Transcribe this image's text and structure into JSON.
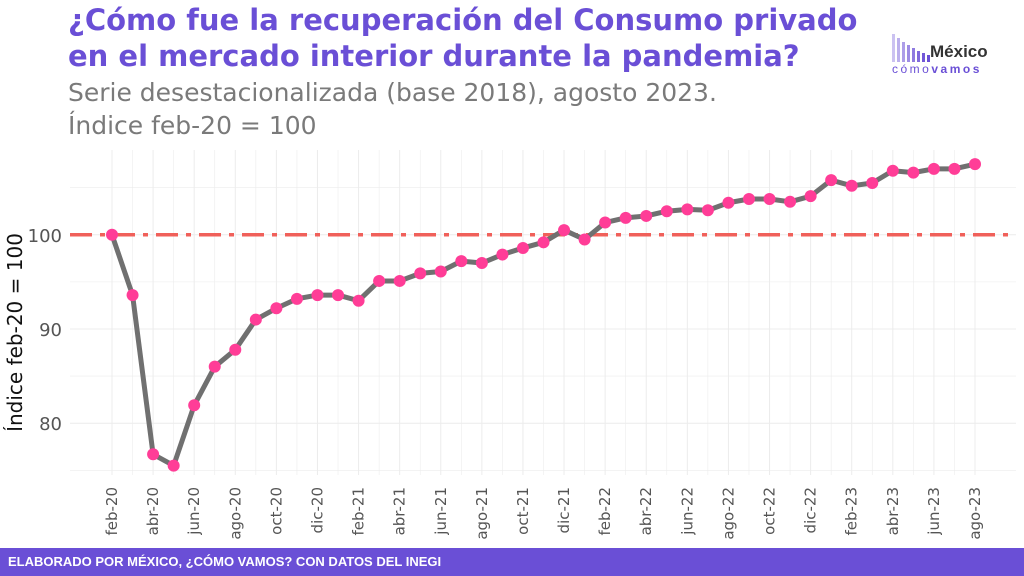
{
  "header": {
    "title": "¿Cómo fue la recuperación del Consumo privado en el mercado interior durante la pandemia?",
    "subtitle_line1": "Serie desestacionalizada (base 2018), agosto 2023.",
    "subtitle_line2": "Índice feb-20 = 100"
  },
  "logo": {
    "top": "México",
    "sub_light": "cómo",
    "sub_bold": "vamos"
  },
  "footer": {
    "text": "ELABORADO POR MÉXICO, ¿CÓMO VAMOS? CON DATOS DEL INEGI"
  },
  "colors": {
    "title": "#6a4fd6",
    "line": "#707070",
    "points": "#ff3d97",
    "reference": "#f0605a",
    "footer_bg": "#6a4fd6",
    "grid": "#ececec"
  },
  "chart_data": {
    "type": "line",
    "ylabel": "Índice feb-20 = 100",
    "xlabel": "",
    "ylim": [
      74.5,
      109
    ],
    "yticks": [
      80,
      90,
      100
    ],
    "grid": true,
    "reference_line": {
      "y": 100,
      "style": "dash-dot"
    },
    "x_labels": [
      "feb-20",
      "abr-20",
      "jun-20",
      "ago-20",
      "oct-20",
      "dic-20",
      "feb-21",
      "abr-21",
      "jun-21",
      "ago-21",
      "oct-21",
      "dic-21",
      "feb-22",
      "abr-22",
      "jun-22",
      "ago-22",
      "oct-22",
      "dic-22",
      "feb-23",
      "abr-23",
      "jun-23",
      "ago-23"
    ],
    "series": [
      {
        "months": [
          "feb-20",
          "mar-20",
          "abr-20",
          "may-20",
          "jun-20",
          "jul-20",
          "ago-20",
          "sep-20",
          "oct-20",
          "nov-20",
          "dic-20",
          "ene-21",
          "feb-21",
          "mar-21",
          "abr-21",
          "may-21",
          "jun-21",
          "jul-21",
          "ago-21",
          "sep-21",
          "oct-21",
          "nov-21",
          "dic-21",
          "ene-22",
          "feb-22",
          "mar-22",
          "abr-22",
          "may-22",
          "jun-22",
          "jul-22",
          "ago-22",
          "sep-22",
          "oct-22",
          "nov-22",
          "dic-22",
          "ene-23",
          "feb-23",
          "mar-23",
          "abr-23",
          "may-23",
          "jun-23",
          "jul-23",
          "ago-23"
        ],
        "values": [
          100.0,
          93.6,
          76.7,
          75.5,
          81.9,
          86.0,
          87.8,
          91.0,
          92.2,
          93.2,
          93.6,
          93.6,
          93.0,
          95.1,
          95.1,
          95.9,
          96.1,
          97.2,
          97.0,
          97.9,
          98.6,
          99.2,
          100.5,
          99.5,
          101.3,
          101.8,
          102.0,
          102.5,
          102.7,
          102.6,
          103.4,
          103.8,
          103.8,
          103.5,
          104.1,
          105.8,
          105.2,
          105.5,
          106.8,
          106.6,
          107.0,
          107.0,
          107.5
        ]
      }
    ]
  }
}
